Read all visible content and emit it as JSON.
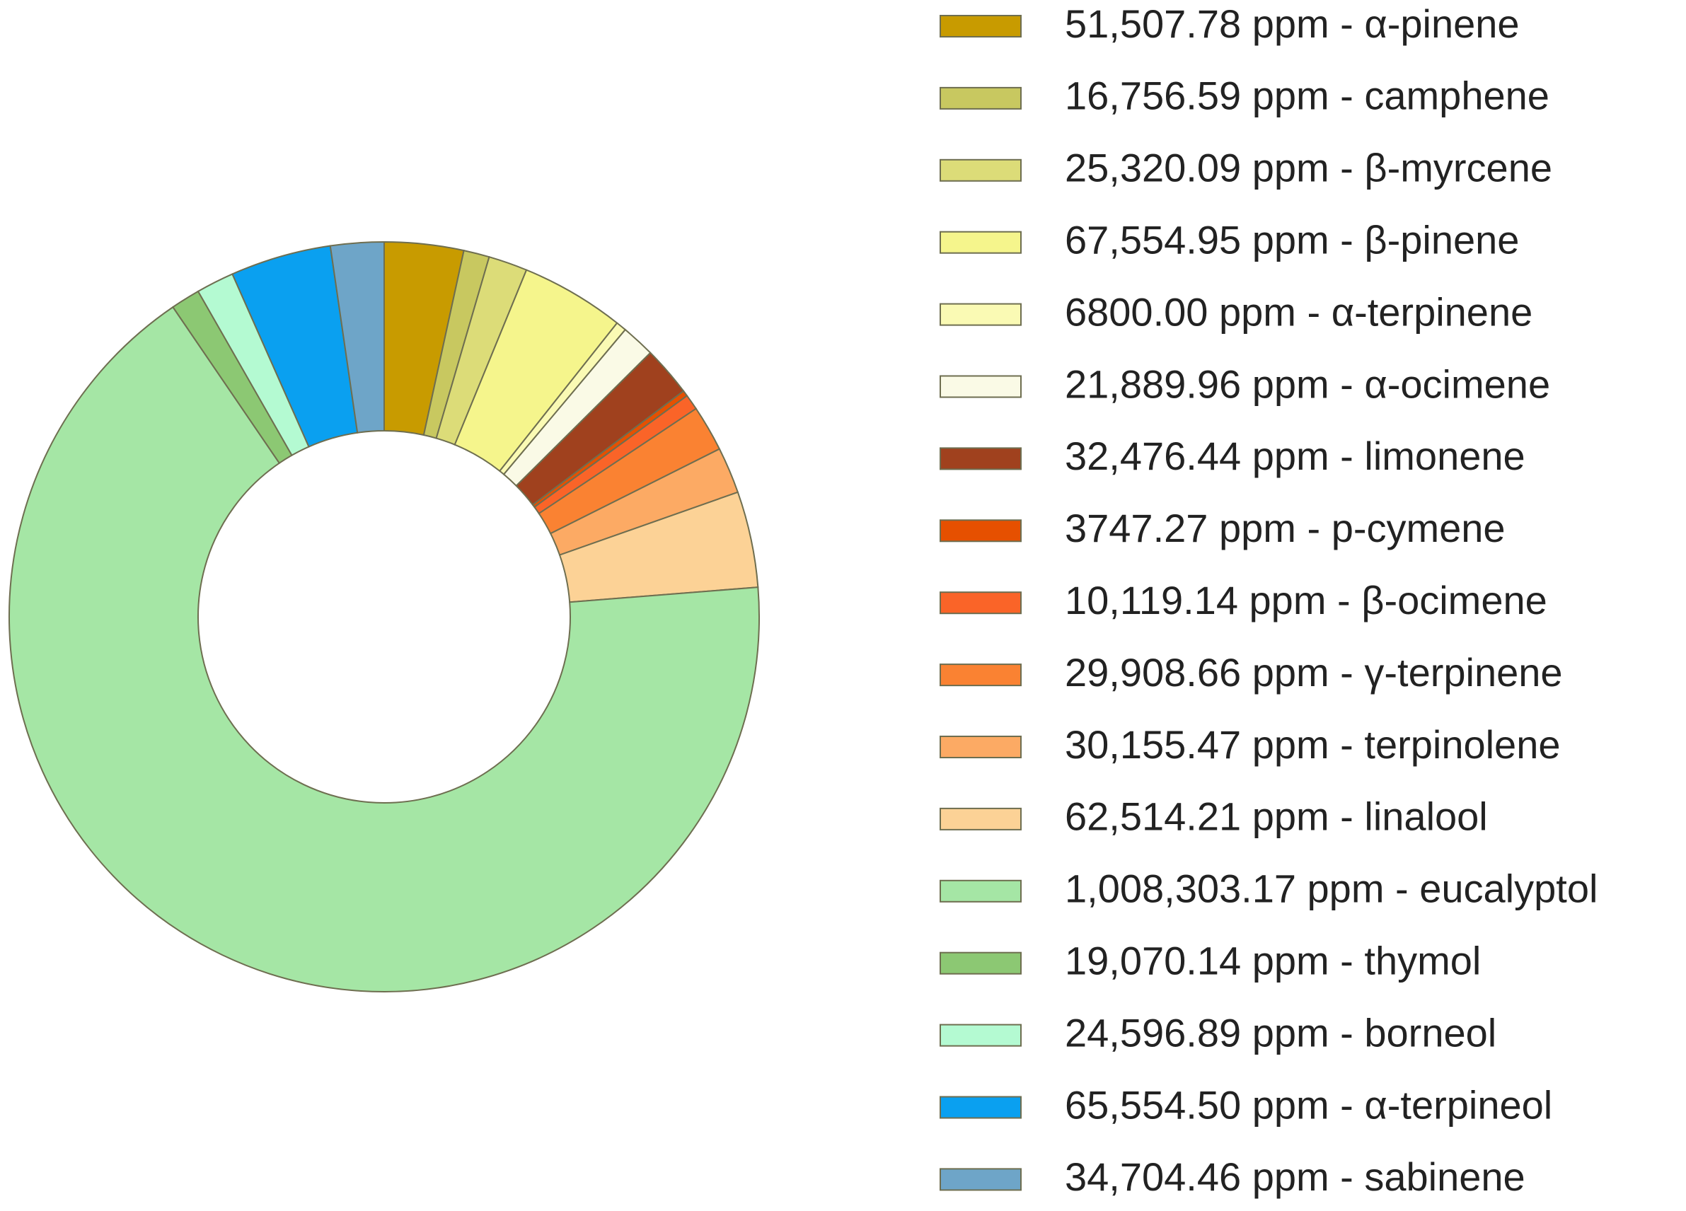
{
  "chart_data": {
    "type": "pie",
    "donut": true,
    "title": "",
    "legend_position": "right",
    "unit": "ppm",
    "slices": [
      {
        "label": "α-pinene",
        "value": 51507.78,
        "text": "51,507.78 ppm - α-pinene",
        "color": "#c89b00"
      },
      {
        "label": "camphene",
        "value": 16756.59,
        "text": "16,756.59 ppm - camphene",
        "color": "#c8c860"
      },
      {
        "label": "β-myrcene",
        "value": 25320.09,
        "text": "25,320.09 ppm - β-myrcene",
        "color": "#dcdc78"
      },
      {
        "label": "β-pinene",
        "value": 67554.95,
        "text": "67,554.95 ppm - β-pinene",
        "color": "#f5f58c"
      },
      {
        "label": "α-terpinene",
        "value": 6800.0,
        "text": "6800.00 ppm - α-terpinene",
        "color": "#fafab4"
      },
      {
        "label": "α-ocimene",
        "value": 21889.96,
        "text": "21,889.96 ppm - α-ocimene",
        "color": "#fafae6"
      },
      {
        "label": "limonene",
        "value": 32476.44,
        "text": "32,476.44 ppm - limonene",
        "color": "#a0411e"
      },
      {
        "label": "p-cymene",
        "value": 3747.27,
        "text": "3747.27 ppm - p-cymene",
        "color": "#e65000"
      },
      {
        "label": "β-ocimene",
        "value": 10119.14,
        "text": "10,119.14 ppm - β-ocimene",
        "color": "#fa6428"
      },
      {
        "label": "γ-terpinene",
        "value": 29908.66,
        "text": "29,908.66 ppm - γ-terpinene",
        "color": "#fa8232"
      },
      {
        "label": "terpinolene",
        "value": 30155.47,
        "text": "30,155.47 ppm - terpinolene",
        "color": "#fcaa64"
      },
      {
        "label": "linalool",
        "value": 62514.21,
        "text": "62,514.21 ppm - linalool",
        "color": "#fcd296"
      },
      {
        "label": "eucalyptol",
        "value": 1008303.17,
        "text": "1,008,303.17 ppm - eucalyptol",
        "color": "#a5e6a5"
      },
      {
        "label": "thymol",
        "value": 19070.14,
        "text": "19,070.14 ppm - thymol",
        "color": "#8cc873"
      },
      {
        "label": "borneol",
        "value": 24596.89,
        "text": "24,596.89 ppm - borneol",
        "color": "#b4fad2"
      },
      {
        "label": "α-terpineol",
        "value": 65554.5,
        "text": "65,554.50 ppm - α-terpineol",
        "color": "#0aa0f0"
      },
      {
        "label": "sabinene",
        "value": 34704.46,
        "text": "34,704.46 ppm - sabinene",
        "color": "#6ea5c8"
      }
    ]
  }
}
